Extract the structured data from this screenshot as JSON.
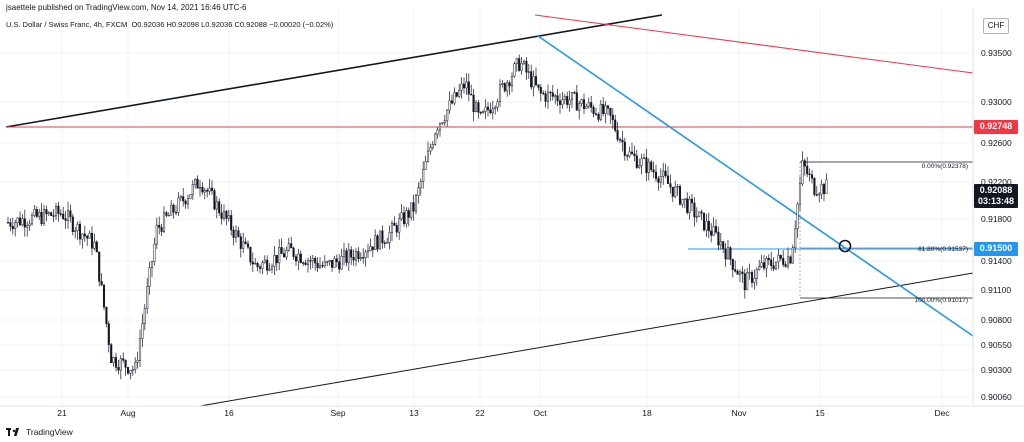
{
  "header": {
    "published": "jsaettele published on TradingView.com, Nov 14, 2021 16:46 UTC-6"
  },
  "symbol": {
    "name": "U.S. Dollar / Swiss Franc, 4h, FXCM",
    "ohlc": "O0.92036 H0.92098 L0.92036 C0.92088 −0.00020 (−0.02%)"
  },
  "currency": "CHF",
  "footer": {
    "brand": "TradingView"
  },
  "colors": {
    "candle": "#131722",
    "black_trend": "#131722",
    "blue_trend": "#2196f3",
    "red_line": "#f23645",
    "red_label_bg": "#f23645",
    "blue_label_bg": "#2196f3",
    "black_label_bg": "#131722"
  },
  "price_axis": {
    "ticks": [
      "0.93500",
      "0.93000",
      "0.92600",
      "0.92200",
      "0.91800",
      "0.91400",
      "0.91100",
      "0.90800",
      "0.90550",
      "0.90300",
      "0.90060"
    ]
  },
  "time_axis": {
    "ticks": [
      "21",
      "Aug",
      "16",
      "Sep",
      "13",
      "22",
      "Oct",
      "18",
      "Nov",
      "15",
      "Dec"
    ]
  },
  "price_labels": {
    "red": "0.92748",
    "current": "0.92088",
    "countdown": "03:13:48",
    "blue": "0.91500"
  },
  "fib_labels": {
    "level_0": "0.00%(0.92378)",
    "level_618": "61.80%(0.91537)",
    "level_100": "100.00%(0.91017)"
  },
  "chart_data": {
    "type": "candlestick",
    "symbol": "USDCHF",
    "timeframe": "4h",
    "yrange": [
      0.9006,
      0.9375
    ],
    "horizontal_levels": [
      0.92748,
      0.915
    ],
    "fib_levels": [
      0.92378,
      0.91537,
      0.91017
    ],
    "close_path": [
      [
        "Jul 15",
        0.9175
      ],
      [
        "Jul 21",
        0.9185
      ],
      [
        "Jul 27",
        0.9155
      ],
      [
        "Jul 30",
        0.905
      ],
      [
        "Aug 3",
        0.904
      ],
      [
        "Aug 6",
        0.917
      ],
      [
        "Aug 12",
        0.9215
      ],
      [
        "Aug 16",
        0.9175
      ],
      [
        "Aug 20",
        0.9135
      ],
      [
        "Aug 25",
        0.915
      ],
      [
        "Aug 30",
        0.9135
      ],
      [
        "Sep 3",
        0.9145
      ],
      [
        "Sep 9",
        0.9165
      ],
      [
        "Sep 13",
        0.919
      ],
      [
        "Sep 16",
        0.9265
      ],
      [
        "Sep 20",
        0.9305
      ],
      [
        "Sep 22",
        0.927
      ],
      [
        "Sep 28",
        0.9325
      ],
      [
        "Oct 1",
        0.9295
      ],
      [
        "Oct 6",
        0.929
      ],
      [
        "Oct 12",
        0.9275
      ],
      [
        "Oct 15",
        0.924
      ],
      [
        "Oct 20",
        0.922
      ],
      [
        "Oct 26",
        0.918
      ],
      [
        "Oct 29",
        0.916
      ],
      [
        "Nov 2",
        0.912
      ],
      [
        "Nov 5",
        0.9135
      ],
      [
        "Nov 10",
        0.9145
      ],
      [
        "Nov 12",
        0.923
      ],
      [
        "Nov 14",
        0.92088
      ]
    ]
  }
}
